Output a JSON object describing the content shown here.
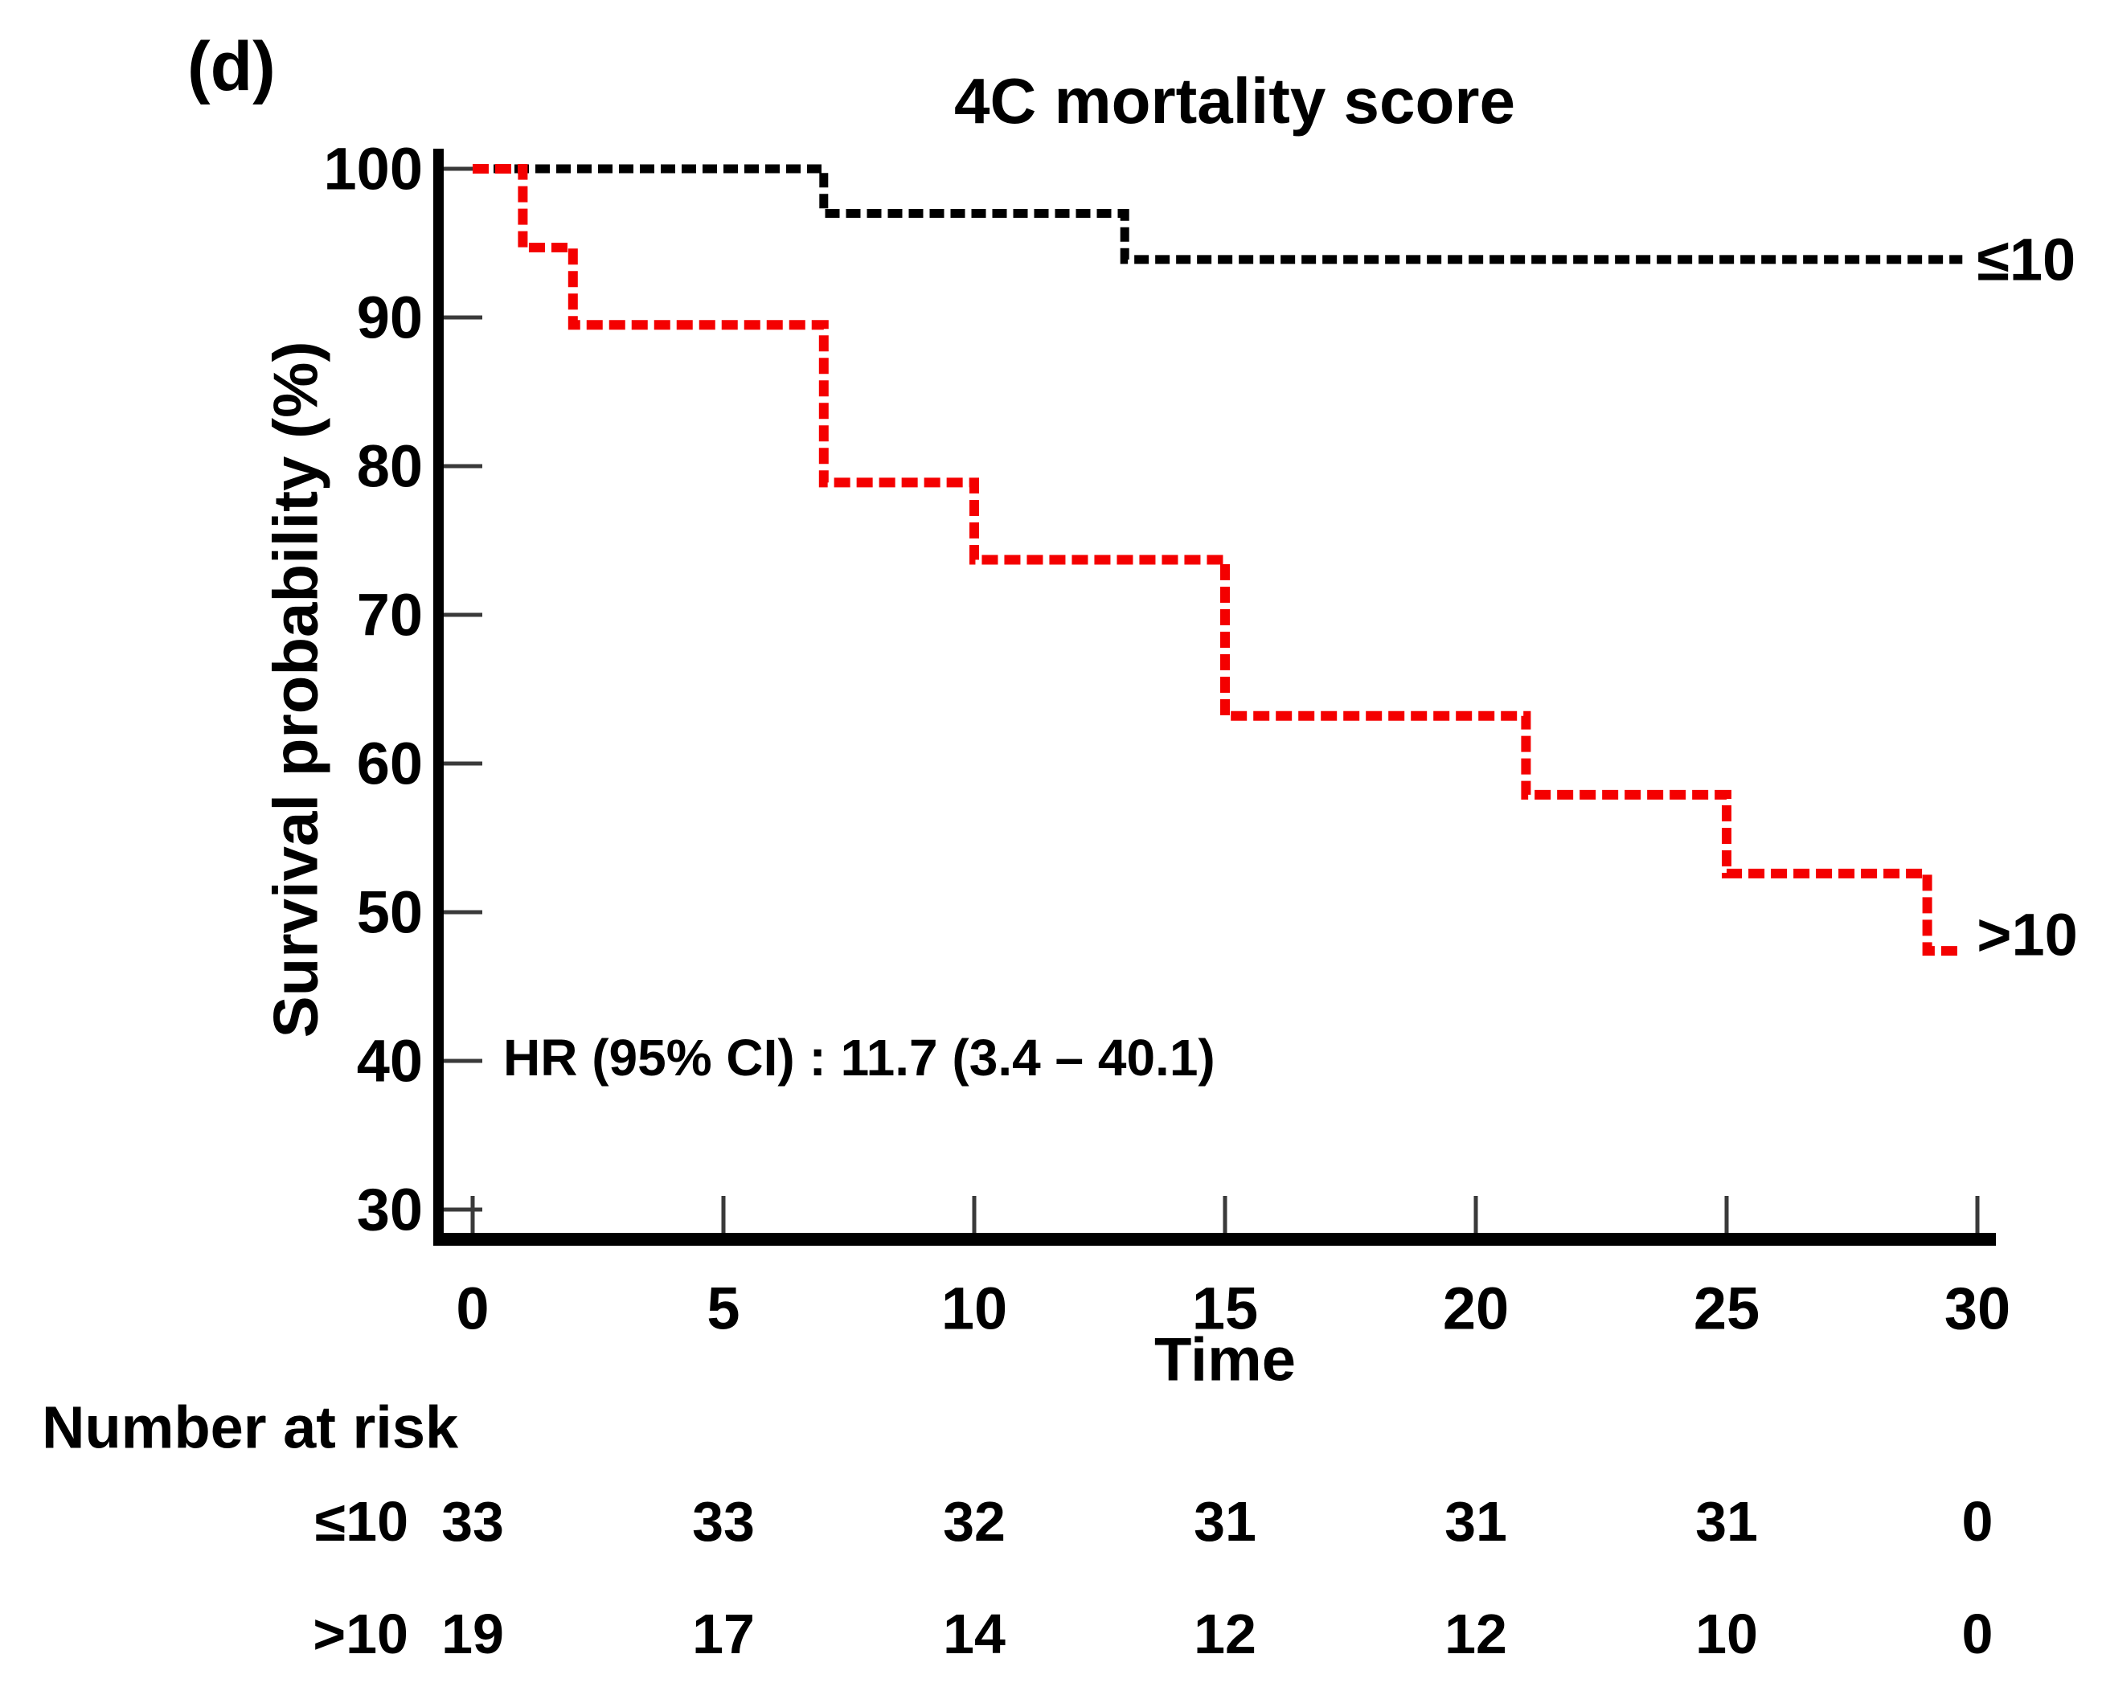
{
  "panel_label": "(d)",
  "chart_data": {
    "type": "line",
    "subtype": "kaplan-meier-step-curve",
    "title": "4C mortality score",
    "xlabel": "Time",
    "ylabel": "Survival probability (%)",
    "xlim": [
      0,
      30
    ],
    "ylim": [
      30,
      100
    ],
    "xticks": [
      0,
      5,
      10,
      15,
      20,
      25,
      30
    ],
    "yticks": [
      100,
      90,
      80,
      70,
      60,
      50,
      40,
      30
    ],
    "grid": false,
    "legend_position": "right-of-curve-end",
    "line_style": "dashed",
    "annotation": "HR (95% CI) : 11.7 (3.4 – 40.1)",
    "series": [
      {
        "name": "≤10",
        "color": "#000000",
        "steps": [
          [
            0,
            100
          ],
          [
            7,
            97.0
          ],
          [
            13,
            93.9
          ]
        ],
        "end_time": 29.7
      },
      {
        "name": ">10",
        "color": "#f40000",
        "steps": [
          [
            0,
            100
          ],
          [
            1,
            94.7
          ],
          [
            2,
            89.5
          ],
          [
            7,
            78.9
          ],
          [
            10,
            73.7
          ],
          [
            15,
            63.2
          ],
          [
            21,
            57.9
          ],
          [
            25,
            52.6
          ],
          [
            29,
            47.4
          ]
        ],
        "end_time": 29.7
      }
    ],
    "risk_table": {
      "heading": "Number at risk",
      "times": [
        0,
        5,
        10,
        15,
        20,
        25,
        30
      ],
      "rows": [
        {
          "label": "≤10",
          "values": [
            "33",
            "33",
            "32",
            "31",
            "31",
            "31",
            "0"
          ]
        },
        {
          "label": ">10",
          "values": [
            "19",
            "17",
            "14",
            "12",
            "12",
            "10",
            "0"
          ]
        }
      ]
    }
  },
  "colors": {
    "axis": "#000000",
    "tick_mark": "#3a3a3a",
    "background": "#ffffff",
    "series_low": "#000000",
    "series_high": "#f40000"
  }
}
